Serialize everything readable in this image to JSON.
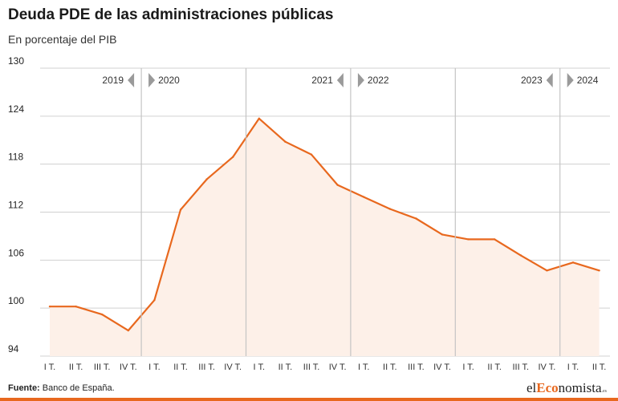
{
  "header": {
    "title": "Deuda PDE de las administraciones públicas",
    "subtitle": "En porcentaje del PIB"
  },
  "footer": {
    "source_label": "Fuente:",
    "source_text": "Banco de España.",
    "logo_prefix": "el",
    "logo_accent": "Eco",
    "logo_suffix": "nomista",
    "logo_tld": ".es"
  },
  "colors": {
    "line": "#e8681e",
    "fill": "#fdf0e8",
    "grid": "#d0d0d0",
    "year_divider": "#c4c4c4",
    "marker": "#9a9a9a"
  },
  "chart_data": {
    "type": "area",
    "title": "Deuda PDE de las administraciones públicas",
    "subtitle": "En porcentaje del PIB",
    "categories": [
      "I T.",
      "II T.",
      "III T.",
      "IV T.",
      "I T.",
      "II T.",
      "III T.",
      "IV T.",
      "I T.",
      "II T.",
      "III T.",
      "IV T.",
      "I T.",
      "II T.",
      "III T.",
      "IV T.",
      "I T.",
      "II T.",
      "III T.",
      "IV T.",
      "I T.",
      "II T."
    ],
    "series": [
      {
        "values": [
          100.2,
          100.2,
          99.2,
          97.2,
          101.0,
          112.3,
          116.1,
          118.9,
          123.7,
          120.8,
          119.2,
          115.4,
          113.9,
          112.4,
          111.2,
          109.2,
          108.6,
          108.6,
          106.6,
          104.7,
          105.7,
          104.7
        ]
      }
    ],
    "ylim": [
      94,
      130
    ],
    "yticks": [
      94,
      100,
      106,
      112,
      118,
      124,
      130
    ],
    "year_markers": [
      {
        "left": "2019",
        "right": "2020"
      },
      {
        "left": "2021",
        "right": "2022"
      },
      {
        "left": "2023",
        "right": "2024"
      }
    ],
    "grid": true,
    "legend": "none"
  }
}
